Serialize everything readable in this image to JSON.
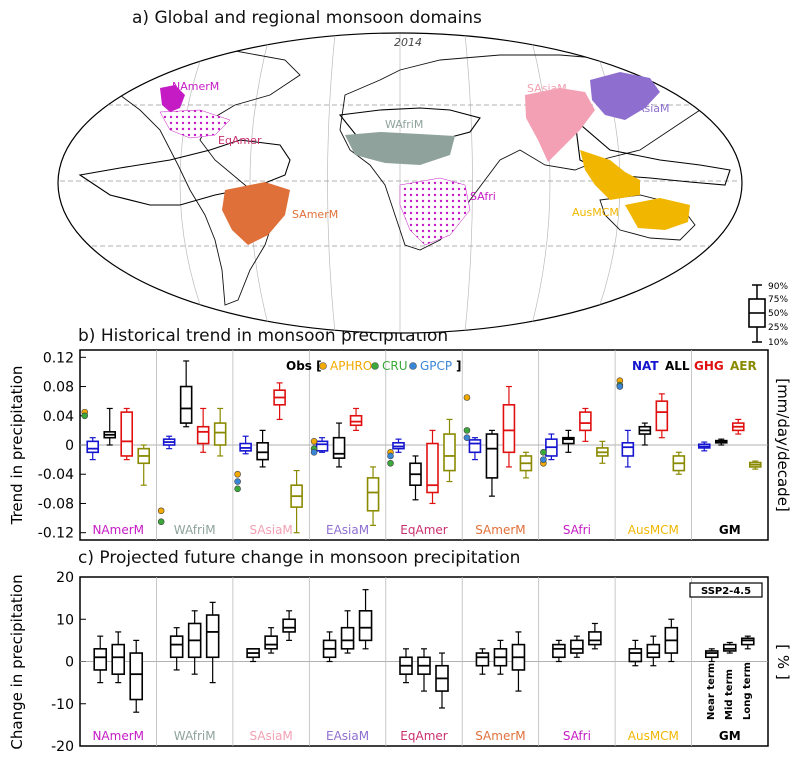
{
  "panels": {
    "a_title": "a) Global and regional monsoon domains",
    "b_title": "b) Historical trend in monsoon precipitation",
    "c_title": "c) Projected future change in monsoon precipitation"
  },
  "map": {
    "year_label": "2014",
    "regions": [
      {
        "name": "NAmerM",
        "color": "#c51bc5"
      },
      {
        "name": "EqAmer",
        "color": "#c9306e"
      },
      {
        "name": "SAmerM",
        "color": "#e0703a"
      },
      {
        "name": "WAfriM",
        "color": "#8fa39c"
      },
      {
        "name": "SAfri",
        "color": "#c51bc5"
      },
      {
        "name": "SAsiaM",
        "color": "#f3a0b4"
      },
      {
        "name": "EAsiaM",
        "color": "#8e6fcf"
      },
      {
        "name": "AusMCM",
        "color": "#f1b700"
      }
    ]
  },
  "box_key": {
    "labels": [
      "90%",
      "75%",
      "50%",
      "25%",
      "10%"
    ]
  },
  "obs_legend": {
    "prefix": "Obs [",
    "items": [
      {
        "label": "APHRO",
        "color": "#f2a900"
      },
      {
        "label": "CRU",
        "color": "#3aa83a"
      },
      {
        "label": "GPCP",
        "color": "#3a86d6"
      }
    ],
    "suffix": "]"
  },
  "forcing_legend": [
    {
      "label": "NAT",
      "color": "#1515d0"
    },
    {
      "label": "ALL",
      "color": "#000000"
    },
    {
      "label": "GHG",
      "color": "#e01010"
    },
    {
      "label": "AER",
      "color": "#8a8a00"
    }
  ],
  "ssp_label": "SSP2-4.5",
  "term_labels": [
    "Near term",
    "Mid term",
    "Long term"
  ],
  "chart_data": [
    {
      "type": "box",
      "title": "b) Historical trend in monsoon precipitation",
      "ylabel": "Trend in precipitation",
      "ylabel_right": "[mm/day/decade]",
      "ylim": [
        -0.13,
        0.13
      ],
      "yticks": [
        -0.12,
        -0.08,
        -0.04,
        0,
        0.04,
        0.08,
        0.12
      ],
      "ytick_labels": [
        "-0.12",
        "-0.08",
        "-0.04",
        "0",
        "0.04",
        "0.08",
        "0.12"
      ],
      "series": [
        {
          "name": "NAT"
        },
        {
          "name": "ALL"
        },
        {
          "name": "GHG"
        },
        {
          "name": "AER"
        }
      ],
      "regions": [
        {
          "name": "NAmerM",
          "color": "#c51bc5",
          "boxes": [
            [
              -0.02,
              -0.01,
              -0.005,
              0.005,
              0.01
            ],
            [
              0,
              0.01,
              0.014,
              0.018,
              0.05
            ],
            [
              -0.02,
              -0.015,
              0.005,
              0.045,
              0.05
            ],
            [
              -0.055,
              -0.025,
              -0.015,
              -0.005,
              0
            ]
          ],
          "obs": [
            0.045,
            0.04
          ]
        },
        {
          "name": "WAfriM",
          "color": "#8fa39c",
          "boxes": [
            [
              -0.005,
              0,
              0.004,
              0.008,
              0.012
            ],
            [
              0.025,
              0.03,
              0.05,
              0.08,
              0.115
            ],
            [
              -0.01,
              0.002,
              0.018,
              0.025,
              0.05
            ],
            [
              -0.015,
              0,
              0.017,
              0.03,
              0.05
            ]
          ],
          "obs": [
            -0.09,
            -0.105
          ]
        },
        {
          "name": "SAsiaM",
          "color": "#f3a0b4",
          "boxes": [
            [
              -0.012,
              -0.008,
              -0.004,
              0.002,
              0.012
            ],
            [
              -0.03,
              -0.02,
              -0.01,
              0.003,
              0.02
            ],
            [
              0.035,
              0.055,
              0.065,
              0.075,
              0.085
            ],
            [
              -0.12,
              -0.085,
              -0.07,
              -0.055,
              -0.035
            ]
          ],
          "obs": [
            -0.04,
            -0.06,
            -0.05
          ]
        },
        {
          "name": "EAsiaM",
          "color": "#8e6fcf",
          "boxes": [
            [
              -0.01,
              -0.008,
              0.001,
              0.005,
              0.01
            ],
            [
              -0.03,
              -0.018,
              -0.012,
              0.01,
              0.03
            ],
            [
              0.02,
              0.027,
              0.032,
              0.04,
              0.05
            ],
            [
              -0.11,
              -0.09,
              -0.065,
              -0.045,
              -0.03
            ]
          ],
          "obs": [
            0.005,
            -0.005,
            -0.01
          ]
        },
        {
          "name": "EqAmer",
          "color": "#c9306e",
          "boxes": [
            [
              -0.01,
              -0.005,
              -0.002,
              0.003,
              0.008
            ],
            [
              -0.075,
              -0.055,
              -0.04,
              -0.025,
              -0.015
            ],
            [
              -0.08,
              -0.065,
              -0.055,
              0.002,
              0.02
            ],
            [
              -0.05,
              -0.035,
              -0.015,
              0.015,
              0.035
            ]
          ],
          "obs": [
            -0.01,
            -0.025,
            -0.015
          ]
        },
        {
          "name": "SAmerM",
          "color": "#e0703a",
          "boxes": [
            [
              -0.02,
              -0.01,
              0.002,
              0.007,
              0.01
            ],
            [
              -0.07,
              -0.045,
              -0.005,
              0.015,
              0.02
            ],
            [
              -0.03,
              -0.01,
              0.02,
              0.055,
              0.08
            ],
            [
              -0.045,
              -0.035,
              -0.025,
              -0.015,
              -0.01
            ]
          ],
          "obs": [
            0.065,
            0.02,
            0.01
          ]
        },
        {
          "name": "SAfri",
          "color": "#c51bc5",
          "boxes": [
            [
              -0.02,
              -0.015,
              -0.003,
              0.008,
              0.015
            ],
            [
              -0.01,
              0.002,
              0.008,
              0.01,
              0.02
            ],
            [
              0.005,
              0.02,
              0.03,
              0.045,
              0.05
            ],
            [
              -0.025,
              -0.015,
              -0.01,
              -0.004,
              0.005
            ]
          ],
          "obs": [
            -0.025,
            -0.01,
            -0.02
          ]
        },
        {
          "name": "AusMCM",
          "color": "#f1b700",
          "boxes": [
            [
              -0.03,
              -0.015,
              -0.003,
              0.003,
              0.02
            ],
            [
              0,
              0.015,
              0.02,
              0.025,
              0.03
            ],
            [
              0.01,
              0.02,
              0.045,
              0.06,
              0.07
            ],
            [
              -0.04,
              -0.035,
              -0.025,
              -0.015,
              -0.01
            ]
          ],
          "obs": [
            0.088,
            0.082,
            0.08
          ]
        },
        {
          "name": "GM",
          "color": "#000000",
          "boxes": [
            [
              -0.008,
              -0.004,
              -0.002,
              0.001,
              0.004
            ],
            [
              0,
              0.003,
              0.004,
              0.006,
              0.008
            ],
            [
              0.015,
              0.02,
              0.025,
              0.03,
              0.035
            ],
            [
              -0.033,
              -0.03,
              -0.027,
              -0.024,
              -0.022
            ]
          ],
          "obs": []
        }
      ]
    },
    {
      "type": "box",
      "title": "c) Projected future change in monsoon precipitation",
      "ylabel": "Change in precipitation",
      "ylabel_right": "[ % ]",
      "ylim": [
        -20,
        20
      ],
      "yticks": [
        -20,
        -10,
        0,
        10,
        20
      ],
      "ytick_labels": [
        "-20",
        "-10",
        "0",
        "10",
        "20"
      ],
      "series": [
        {
          "name": "Near term"
        },
        {
          "name": "Mid term"
        },
        {
          "name": "Long term"
        }
      ],
      "regions": [
        {
          "name": "NAmerM",
          "color": "#c51bc5",
          "boxes": [
            [
              -5,
              -2,
              1,
              3,
              6
            ],
            [
              -5,
              -3,
              1,
              4,
              7
            ],
            [
              -12,
              -9,
              -3,
              2,
              5
            ]
          ]
        },
        {
          "name": "WAfriM",
          "color": "#8fa39c",
          "boxes": [
            [
              -2,
              1,
              4,
              6,
              8
            ],
            [
              -3,
              1,
              5,
              9,
              12
            ],
            [
              -5,
              1,
              7,
              11,
              14
            ]
          ]
        },
        {
          "name": "SAsiaM",
          "color": "#f3a0b4",
          "boxes": [
            [
              0,
              1,
              2,
              3,
              3
            ],
            [
              2,
              3,
              4,
              6,
              8
            ],
            [
              5,
              7,
              8,
              10,
              12
            ]
          ]
        },
        {
          "name": "EAsiaM",
          "color": "#8e6fcf",
          "boxes": [
            [
              0,
              1,
              3,
              5,
              7
            ],
            [
              2,
              3,
              5,
              8,
              12
            ],
            [
              3,
              5,
              8,
              12,
              17
            ]
          ]
        },
        {
          "name": "EqAmer",
          "color": "#c9306e",
          "boxes": [
            [
              -5,
              -3,
              -1,
              1,
              3
            ],
            [
              -7,
              -3,
              -1,
              1,
              3
            ],
            [
              -11,
              -7,
              -4,
              -1,
              2
            ]
          ]
        },
        {
          "name": "SAmerM",
          "color": "#e0703a",
          "boxes": [
            [
              -3,
              -1,
              1,
              2,
              3
            ],
            [
              -3,
              -1,
              1,
              3,
              5
            ],
            [
              -7,
              -2,
              1,
              4,
              7
            ]
          ]
        },
        {
          "name": "SAfri",
          "color": "#c51bc5",
          "boxes": [
            [
              0,
              1,
              3,
              4,
              5
            ],
            [
              1,
              2,
              3,
              5,
              6
            ],
            [
              3,
              4,
              5,
              7,
              9
            ]
          ]
        },
        {
          "name": "AusMCM",
          "color": "#f1b700",
          "boxes": [
            [
              -1,
              0,
              2,
              3,
              5
            ],
            [
              -1,
              1,
              2,
              4,
              6
            ],
            [
              0,
              2,
              5,
              8,
              10
            ]
          ]
        },
        {
          "name": "GM",
          "color": "#000000",
          "boxes": [
            [
              0,
              1,
              2,
              2.5,
              3
            ],
            [
              2,
              2.5,
              3,
              4,
              4.5
            ],
            [
              3,
              4,
              5,
              5.5,
              6
            ]
          ]
        }
      ]
    }
  ]
}
